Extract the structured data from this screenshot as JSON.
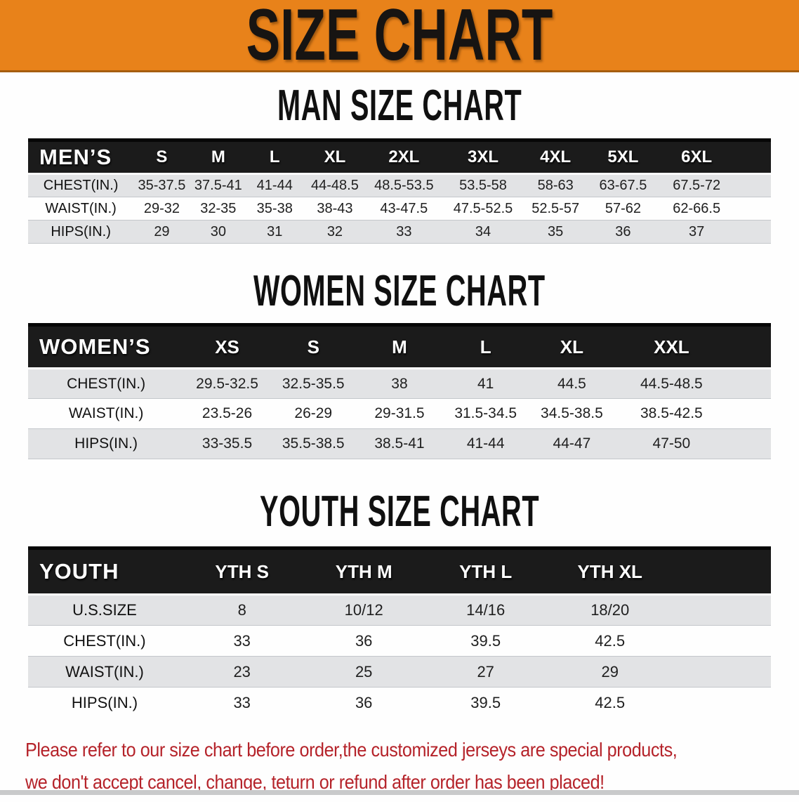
{
  "banner": {
    "title": "SIZE CHART"
  },
  "colors": {
    "accent": "#E8821A",
    "accent_edge": "#A55E10",
    "table_header_bg": "#1B1B1B",
    "table_header_text": "#FFFFFF",
    "row_stripe_gray": "#E2E3E5",
    "disclaimer_red": "#B5232A"
  },
  "sections": [
    {
      "heading": "MAN SIZE CHART",
      "table": {
        "header": [
          "MEN’S",
          "S",
          "M",
          "L",
          "XL",
          "2XL",
          "3XL",
          "4XL",
          "5XL",
          "6XL"
        ],
        "rows": [
          [
            "CHEST(IN.)",
            "35-37.5",
            "37.5-41",
            "41-44",
            "44-48.5",
            "48.5-53.5",
            "53.5-58",
            "58-63",
            "63-67.5",
            "67.5-72"
          ],
          [
            "WAIST(IN.)",
            "29-32",
            "32-35",
            "35-38",
            "38-43",
            "43-47.5",
            "47.5-52.5",
            "52.5-57",
            "57-62",
            "62-66.5"
          ],
          [
            "HIPS(IN.)",
            "29",
            "30",
            "31",
            "32",
            "33",
            "34",
            "35",
            "36",
            "37"
          ]
        ]
      }
    },
    {
      "heading": "WOMEN SIZE CHART",
      "table": {
        "header": [
          "WOMEN’S",
          "XS",
          "S",
          "M",
          "L",
          "XL",
          "XXL"
        ],
        "rows": [
          [
            "CHEST(IN.)",
            "29.5-32.5",
            "32.5-35.5",
            "38",
            "41",
            "44.5",
            "44.5-48.5"
          ],
          [
            "WAIST(IN.)",
            "23.5-26",
            "26-29",
            "29-31.5",
            "31.5-34.5",
            "34.5-38.5",
            "38.5-42.5"
          ],
          [
            "HIPS(IN.)",
            "33-35.5",
            "35.5-38.5",
            "38.5-41",
            "41-44",
            "44-47",
            "47-50"
          ]
        ]
      }
    },
    {
      "heading": "YOUTH SIZE CHART",
      "table": {
        "header": [
          "YOUTH",
          "YTH S",
          "YTH M",
          "YTH L",
          "YTH XL"
        ],
        "rows": [
          [
            "U.S.SIZE",
            "8",
            "10/12",
            "14/16",
            "18/20"
          ],
          [
            "CHEST(IN.)",
            "33",
            "36",
            "39.5",
            "42.5"
          ],
          [
            "WAIST(IN.)",
            "23",
            "25",
            "27",
            "29"
          ],
          [
            "HIPS(IN.)",
            "33",
            "36",
            "39.5",
            "42.5"
          ]
        ]
      }
    }
  ],
  "disclaimer": {
    "lines": [
      "Please refer to our size chart before order,the customized jerseys are special products,",
      "we don't accept cancel, change, teturn or refund after order has been placed!"
    ]
  }
}
